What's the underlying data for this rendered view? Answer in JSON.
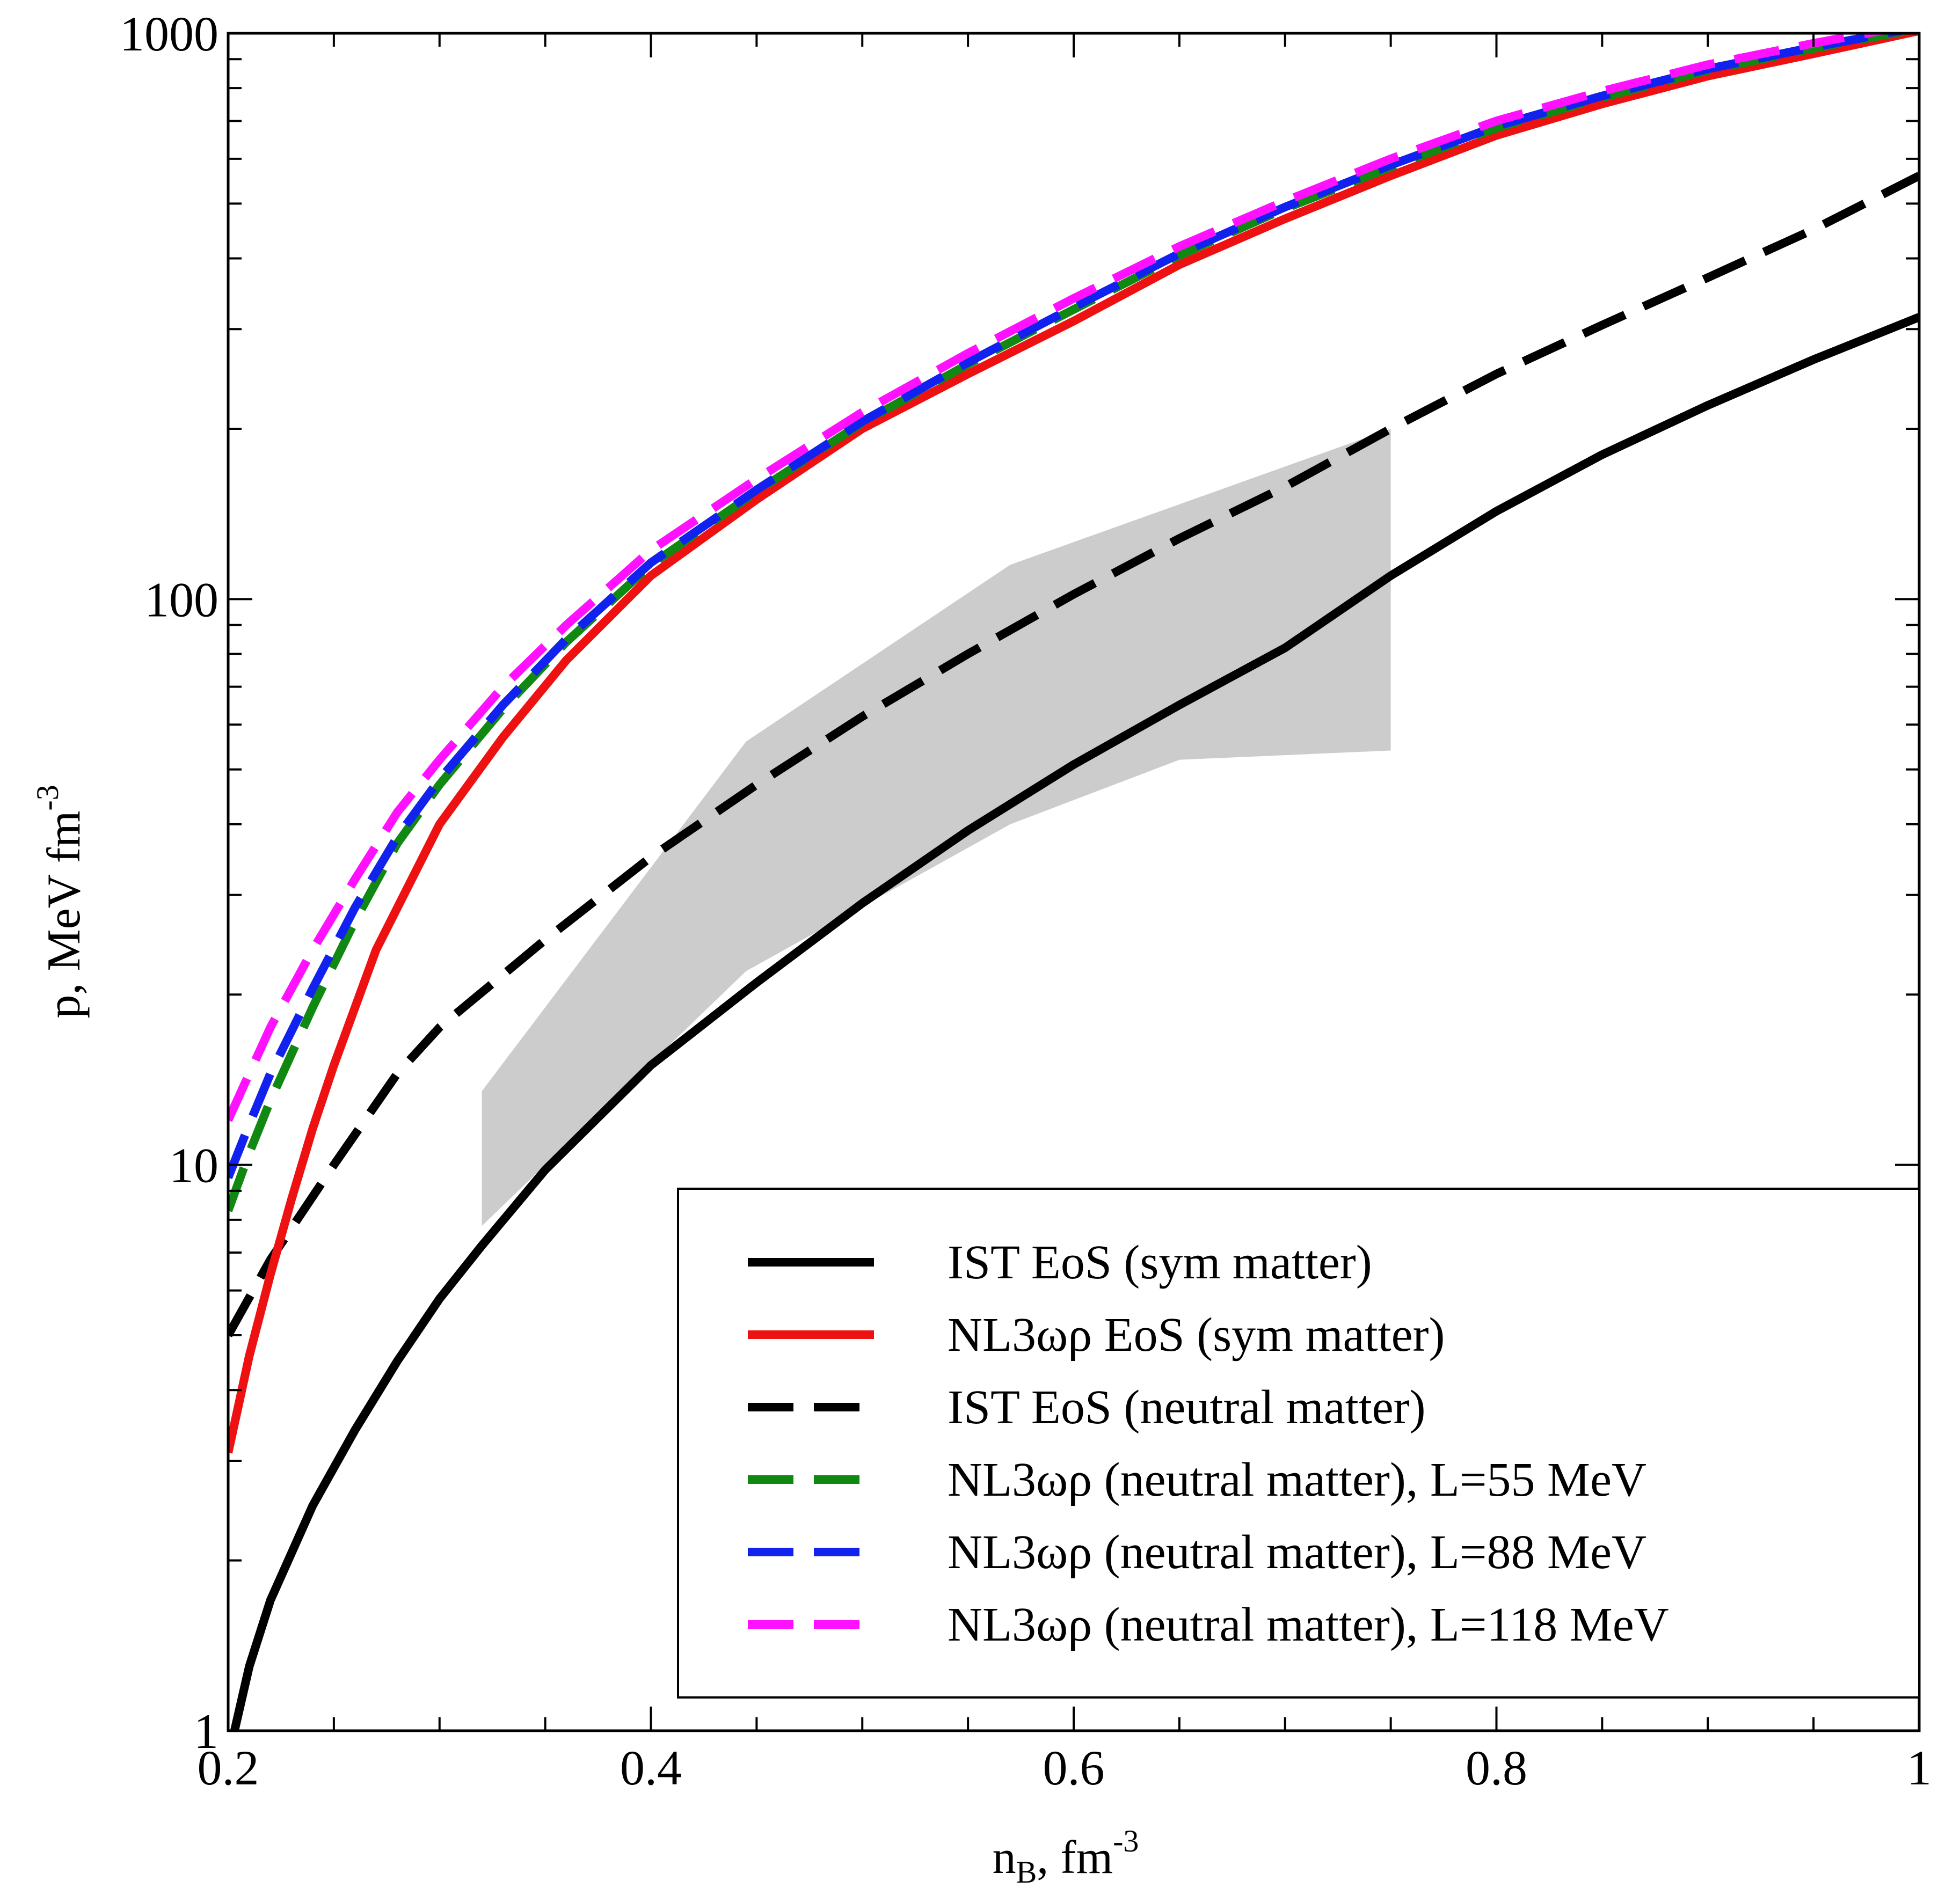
{
  "chart_data": {
    "type": "line",
    "title": "",
    "xlabel": {
      "main": "n",
      "sub": "B",
      "rest": ", fm",
      "sup": "-3"
    },
    "ylabel": {
      "main": "p, MeV fm",
      "sup": "-3"
    },
    "xlim": [
      0.2,
      1.0
    ],
    "ylim": [
      1,
      1000
    ],
    "yscale": "log",
    "x_ticks": [
      {
        "value": 0.2,
        "label": "0.2"
      },
      {
        "value": 0.4,
        "label": "0.4"
      },
      {
        "value": 0.6,
        "label": "0.6"
      },
      {
        "value": 0.8,
        "label": "0.8"
      },
      {
        "value": 1.0,
        "label": "1"
      }
    ],
    "y_ticks": [
      {
        "value": 1,
        "label": "1"
      },
      {
        "value": 10,
        "label": "10"
      },
      {
        "value": 100,
        "label": "100"
      },
      {
        "value": 1000,
        "label": "1000"
      }
    ],
    "legend_position": "bottom-right",
    "band": {
      "name": "constraint-band",
      "color": "#cccccc",
      "upper": [
        [
          0.32,
          13.5
        ],
        [
          0.445,
          56
        ],
        [
          0.57,
          115
        ],
        [
          0.75,
          200
        ]
      ],
      "lower": [
        [
          0.75,
          54
        ],
        [
          0.65,
          52
        ],
        [
          0.57,
          40
        ],
        [
          0.445,
          22
        ],
        [
          0.32,
          7.8
        ]
      ]
    },
    "series": [
      {
        "name": "IST EoS (sym matter)",
        "color": "#000000",
        "dash": "solid",
        "points": [
          [
            0.203,
            1.0
          ],
          [
            0.21,
            1.3
          ],
          [
            0.22,
            1.7
          ],
          [
            0.24,
            2.5
          ],
          [
            0.26,
            3.4
          ],
          [
            0.28,
            4.5
          ],
          [
            0.3,
            5.8
          ],
          [
            0.32,
            7.2
          ],
          [
            0.35,
            9.8
          ],
          [
            0.4,
            15
          ],
          [
            0.45,
            21
          ],
          [
            0.5,
            29
          ],
          [
            0.55,
            39
          ],
          [
            0.6,
            51
          ],
          [
            0.65,
            65
          ],
          [
            0.7,
            82
          ],
          [
            0.75,
            110
          ],
          [
            0.8,
            143
          ],
          [
            0.85,
            180
          ],
          [
            0.9,
            220
          ],
          [
            0.95,
            265
          ],
          [
            1.0,
            315
          ]
        ]
      },
      {
        "name": "NL3ωρ EoS (sym matter)",
        "color": "#ee1111",
        "dash": "solid",
        "points": [
          [
            0.2,
            3.1
          ],
          [
            0.21,
            4.6
          ],
          [
            0.22,
            6.4
          ],
          [
            0.23,
            8.7
          ],
          [
            0.24,
            11.6
          ],
          [
            0.25,
            15
          ],
          [
            0.27,
            24
          ],
          [
            0.3,
            40
          ],
          [
            0.33,
            57
          ],
          [
            0.36,
            78
          ],
          [
            0.4,
            110
          ],
          [
            0.45,
            150
          ],
          [
            0.5,
            200
          ],
          [
            0.55,
            250
          ],
          [
            0.6,
            310
          ],
          [
            0.65,
            390
          ],
          [
            0.7,
            470
          ],
          [
            0.75,
            560
          ],
          [
            0.8,
            660
          ],
          [
            0.85,
            750
          ],
          [
            0.9,
            840
          ],
          [
            0.95,
            920
          ],
          [
            1.0,
            1010
          ]
        ]
      },
      {
        "name": "IST EoS (neutral matter)",
        "color": "#000000",
        "dash": "dashed",
        "points": [
          [
            0.2,
            5.0
          ],
          [
            0.22,
            6.8
          ],
          [
            0.25,
            10
          ],
          [
            0.28,
            14.5
          ],
          [
            0.3,
            17.5
          ],
          [
            0.35,
            25
          ],
          [
            0.4,
            35
          ],
          [
            0.45,
            47
          ],
          [
            0.5,
            62
          ],
          [
            0.55,
            80
          ],
          [
            0.6,
            102
          ],
          [
            0.65,
            128
          ],
          [
            0.7,
            158
          ],
          [
            0.75,
            200
          ],
          [
            0.8,
            250
          ],
          [
            0.85,
            305
          ],
          [
            0.9,
            370
          ],
          [
            0.95,
            450
          ],
          [
            1.0,
            560
          ]
        ]
      },
      {
        "name": "NL3ωρ (neutral matter), L=55 MeV",
        "color": "#118811",
        "dash": "dashed",
        "points": [
          [
            0.2,
            8.3
          ],
          [
            0.21,
            10.5
          ],
          [
            0.22,
            13
          ],
          [
            0.24,
            19
          ],
          [
            0.26,
            27
          ],
          [
            0.28,
            37
          ],
          [
            0.3,
            47
          ],
          [
            0.33,
            64
          ],
          [
            0.36,
            84
          ],
          [
            0.4,
            115
          ],
          [
            0.45,
            155
          ],
          [
            0.5,
            205
          ],
          [
            0.55,
            260
          ],
          [
            0.6,
            325
          ],
          [
            0.65,
            405
          ],
          [
            0.7,
            490
          ],
          [
            0.75,
            580
          ],
          [
            0.8,
            680
          ],
          [
            0.85,
            770
          ],
          [
            0.9,
            860
          ],
          [
            0.95,
            940
          ],
          [
            1.0,
            1020
          ]
        ]
      },
      {
        "name": "NL3ωρ (neutral matter), L=88 MeV",
        "color": "#1122ee",
        "dash": "dashed",
        "points": [
          [
            0.2,
            9.5
          ],
          [
            0.21,
            11.8
          ],
          [
            0.22,
            14.5
          ],
          [
            0.24,
            20.5
          ],
          [
            0.26,
            28.5
          ],
          [
            0.28,
            38
          ],
          [
            0.3,
            48
          ],
          [
            0.33,
            65
          ],
          [
            0.36,
            85
          ],
          [
            0.4,
            116
          ],
          [
            0.45,
            156
          ],
          [
            0.5,
            206
          ],
          [
            0.55,
            262
          ],
          [
            0.6,
            328
          ],
          [
            0.65,
            408
          ],
          [
            0.7,
            493
          ],
          [
            0.75,
            585
          ],
          [
            0.8,
            685
          ],
          [
            0.85,
            775
          ],
          [
            0.9,
            865
          ],
          [
            0.95,
            945
          ],
          [
            1.0,
            1025
          ]
        ]
      },
      {
        "name": "NL3ωρ (neutral matter), L=118 MeV",
        "color": "#ff11ff",
        "dash": "dashed",
        "points": [
          [
            0.2,
            12
          ],
          [
            0.21,
            14.5
          ],
          [
            0.22,
            17.5
          ],
          [
            0.24,
            24
          ],
          [
            0.26,
            32
          ],
          [
            0.28,
            42
          ],
          [
            0.3,
            52
          ],
          [
            0.33,
            70
          ],
          [
            0.36,
            90
          ],
          [
            0.4,
            122
          ],
          [
            0.45,
            163
          ],
          [
            0.5,
            214
          ],
          [
            0.55,
            272
          ],
          [
            0.6,
            340
          ],
          [
            0.65,
            420
          ],
          [
            0.7,
            505
          ],
          [
            0.75,
            600
          ],
          [
            0.8,
            700
          ],
          [
            0.85,
            790
          ],
          [
            0.9,
            880
          ],
          [
            0.95,
            960
          ],
          [
            1.0,
            1040
          ]
        ]
      }
    ]
  }
}
